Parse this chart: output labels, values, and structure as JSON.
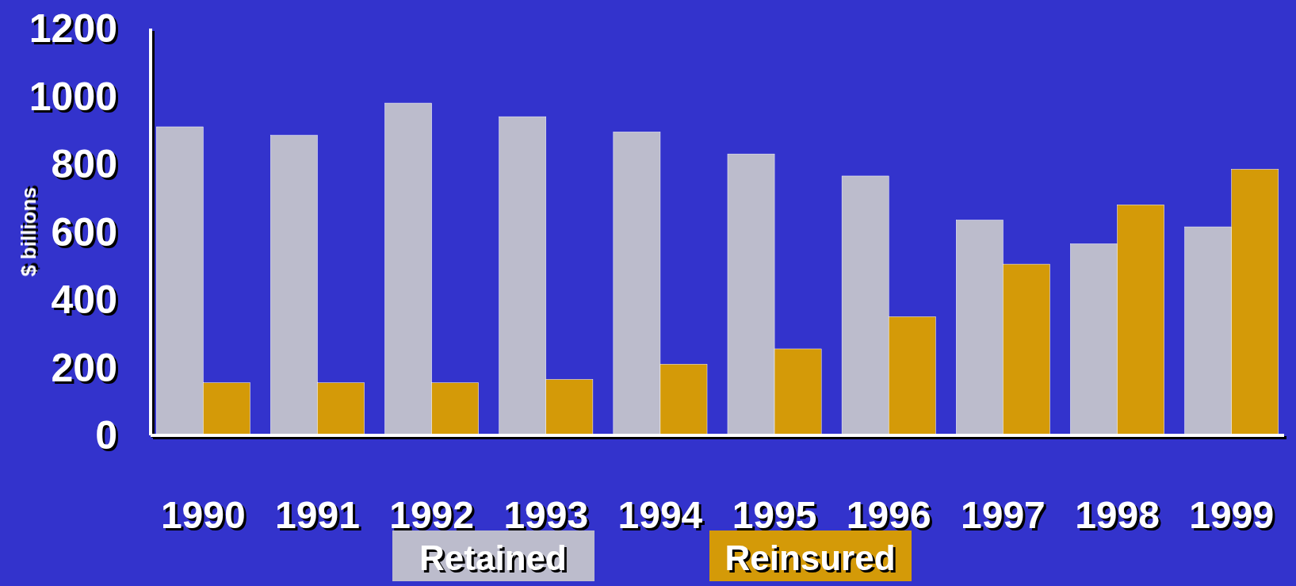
{
  "chart_data": {
    "type": "bar",
    "ylabel": "$ billions",
    "categories": [
      "1990",
      "1991",
      "1992",
      "1993",
      "1994",
      "1995",
      "1996",
      "1997",
      "1998",
      "1999"
    ],
    "series": [
      {
        "name": "Retained",
        "color": "#bcbccc",
        "values": [
          910,
          885,
          980,
          940,
          895,
          830,
          765,
          635,
          565,
          615
        ]
      },
      {
        "name": "Reinsured",
        "color": "#d49a08",
        "values": [
          155,
          155,
          155,
          165,
          210,
          255,
          350,
          505,
          680,
          785
        ]
      }
    ],
    "ylim": [
      0,
      1200
    ],
    "yticks": [
      0,
      200,
      400,
      600,
      800,
      1000,
      1200
    ],
    "grid": false,
    "legend": "bottom"
  }
}
